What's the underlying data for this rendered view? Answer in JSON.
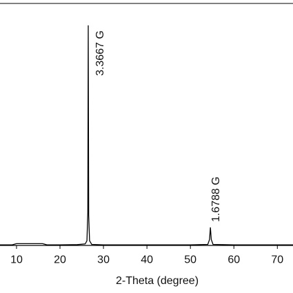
{
  "chart_data": {
    "type": "line",
    "x_label": "2-Theta (degree)",
    "x": [
      6.2,
      9,
      10,
      16,
      17,
      20,
      24,
      25.8,
      26.2,
      26.4,
      26.5,
      26.6,
      26.8,
      27.3,
      30,
      40,
      50,
      54,
      54.4,
      54.6,
      54.8,
      55.2,
      60,
      70,
      73.6
    ],
    "series": [
      {
        "color": "#000000",
        "values": [
          0.8,
          0.8,
          1.3,
          1.3,
          0.8,
          0.8,
          0.9,
          1.2,
          2.5,
          14,
          91,
          13,
          2.5,
          1.0,
          0.8,
          0.8,
          0.8,
          1.0,
          3,
          8,
          3,
          1.0,
          0.8,
          0.8,
          0.8
        ]
      }
    ],
    "annotations": [
      "3.3667 G",
      "1.6788 G"
    ],
    "xlim": [
      6.2,
      73.6
    ],
    "ylim": [
      0,
      100
    ],
    "xticks": [
      10,
      20,
      30,
      40,
      50,
      60,
      70
    ]
  }
}
